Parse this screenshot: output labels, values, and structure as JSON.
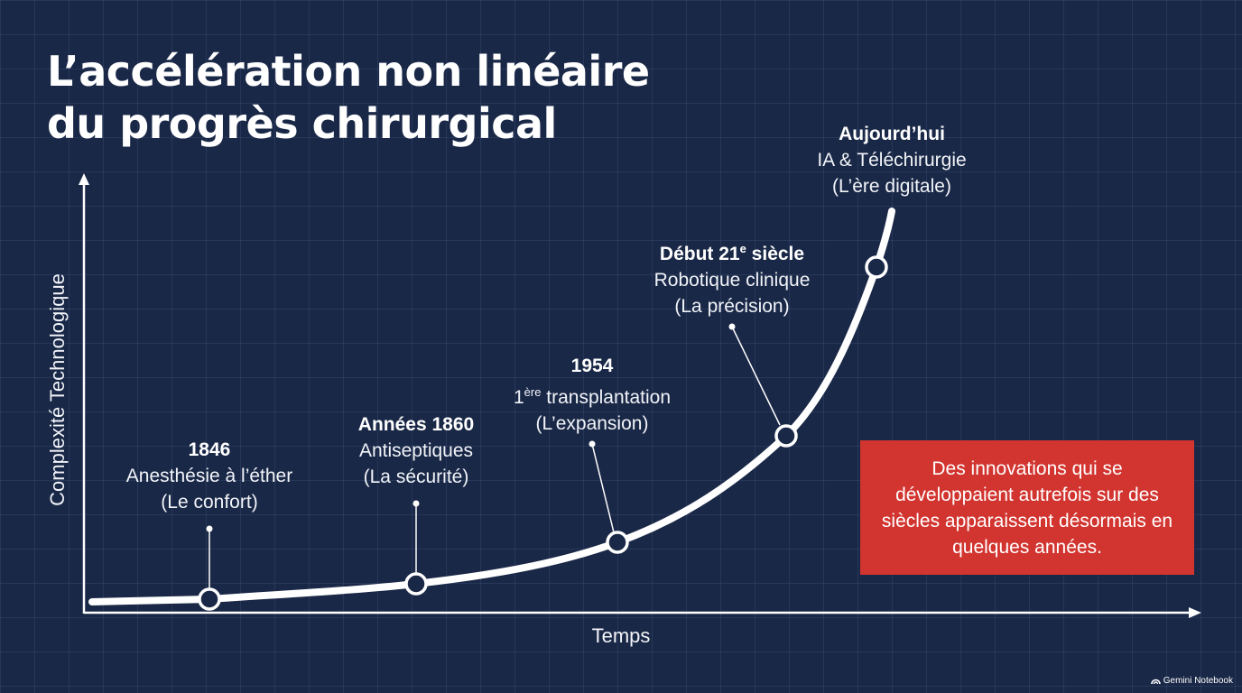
{
  "title_lines": [
    "L’accélération non linéaire",
    "du progrès chirurgical"
  ],
  "axes": {
    "y_label": "Complexité Technologique",
    "x_label": "Temps"
  },
  "milestones": [
    {
      "line1": "1846",
      "line2": "Anesthésie à l’éther",
      "line3": "(Le confort)"
    },
    {
      "line1": "Années 1860",
      "line2": "Antiseptiques",
      "line3": "(La sécurité)"
    },
    {
      "line1": "1954",
      "line2_sup": "ère",
      "line2_pre": "1",
      "line2": "transplantation",
      "line3": "(L’expansion)"
    },
    {
      "line1_pre": "Début 21",
      "line1_sup": "e",
      "line1_post": "siècle",
      "line2": "Robotique clinique",
      "line3": "(La précision)"
    },
    {
      "line1": "Aujourd’hui",
      "line2": "IA & Téléchirurgie",
      "line3": "(L’ère digitale)"
    }
  ],
  "callout": {
    "text": "Des innovations qui se développaient autrefois sur des siècles apparaissent désormais en quelques années.",
    "color": "#d2342f"
  },
  "colors": {
    "background": "#1a2847",
    "curve": "#ffffff",
    "accent": "#d2342f"
  },
  "brand": {
    "label": "Gemini Notebook",
    "icon": "gemini-notebook-icon"
  }
}
